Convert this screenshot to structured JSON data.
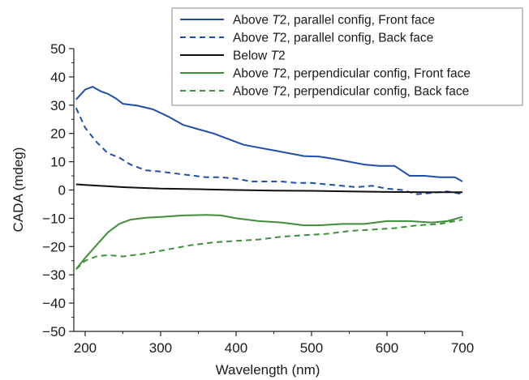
{
  "chart_data": {
    "type": "line",
    "title": "",
    "xlabel": "Wavelength (nm)",
    "ylabel": "CADA (mdeg)",
    "xlim": [
      185,
      700
    ],
    "ylim": [
      -50,
      50
    ],
    "xticks": [
      200,
      300,
      400,
      500,
      600,
      700
    ],
    "yticks": [
      -50,
      -40,
      -30,
      -20,
      -10,
      0,
      10,
      20,
      30,
      40,
      50
    ],
    "ytick_labels": [
      "−50",
      "−40",
      "−30",
      "−20",
      "−10",
      "0",
      "10",
      "20",
      "30",
      "40",
      "50"
    ],
    "grid": false,
    "legend_position": "top-right",
    "series": [
      {
        "name": "Above T2, parallel config, Front face",
        "legend": {
          "prefix": "Above ",
          "italic": "T",
          "suffix": "2, parallel config, Front face"
        },
        "color": "#1f4fa8",
        "dash": "solid",
        "x": [
          188,
          200,
          210,
          220,
          230,
          240,
          250,
          270,
          290,
          310,
          330,
          350,
          370,
          390,
          410,
          430,
          450,
          470,
          490,
          510,
          530,
          550,
          570,
          590,
          610,
          630,
          650,
          670,
          690,
          700
        ],
        "y": [
          32,
          35.5,
          36.5,
          35,
          34,
          32.5,
          30.5,
          29.8,
          28.5,
          26,
          23,
          21.5,
          20,
          18,
          16,
          15,
          14,
          13,
          12,
          11.8,
          11,
          10,
          9,
          8.5,
          8.5,
          5,
          5,
          4.5,
          4.5,
          3
        ]
      },
      {
        "name": "Above T2, parallel config, Back face",
        "legend": {
          "prefix": "Above ",
          "italic": "T",
          "suffix": "2, parallel config, Back face"
        },
        "color": "#1f4fa8",
        "dash": "dashed",
        "x": [
          188,
          200,
          215,
          230,
          245,
          260,
          280,
          300,
          330,
          360,
          380,
          400,
          420,
          440,
          460,
          480,
          500,
          520,
          540,
          560,
          580,
          600,
          620,
          640,
          660,
          680,
          700
        ],
        "y": [
          29,
          22,
          17,
          13,
          11.5,
          9,
          7,
          6.5,
          5.5,
          4.5,
          4.5,
          4,
          3,
          3,
          3,
          2.5,
          2.5,
          2,
          1.5,
          1,
          1.5,
          0.5,
          0,
          -1.5,
          -1,
          -0.5,
          -1.5
        ]
      },
      {
        "name": "Below T2",
        "legend": {
          "prefix": "Below ",
          "italic": "T",
          "suffix": "2"
        },
        "color": "#111111",
        "dash": "solid",
        "x": [
          188,
          200,
          250,
          300,
          350,
          400,
          450,
          500,
          550,
          600,
          650,
          700
        ],
        "y": [
          2,
          1.8,
          1,
          0.5,
          0.3,
          0,
          -0.2,
          -0.3,
          -0.5,
          -0.7,
          -0.8,
          -0.8
        ]
      },
      {
        "name": "Above T2, perpendicular config, Front face",
        "legend": {
          "prefix": "Above ",
          "italic": "T",
          "suffix": "2, perpendicular config, Front face"
        },
        "color": "#3f8f3a",
        "dash": "solid",
        "x": [
          188,
          200,
          215,
          230,
          245,
          260,
          280,
          300,
          330,
          360,
          380,
          400,
          430,
          460,
          490,
          510,
          540,
          570,
          600,
          630,
          660,
          680,
          700
        ],
        "y": [
          -28,
          -24,
          -19.5,
          -15,
          -12,
          -10.5,
          -9.8,
          -9.5,
          -9,
          -8.8,
          -9,
          -10,
          -11,
          -11.5,
          -12.5,
          -12.5,
          -12,
          -12,
          -11,
          -11,
          -11.5,
          -11,
          -9.5
        ]
      },
      {
        "name": "Above T2, perpendicular config, Back face",
        "legend": {
          "prefix": "Above ",
          "italic": "T",
          "suffix": "2, perpendicular config, Back face"
        },
        "color": "#3f8f3a",
        "dash": "dashed",
        "x": [
          188,
          200,
          215,
          230,
          250,
          280,
          310,
          340,
          370,
          400,
          430,
          460,
          490,
          520,
          550,
          580,
          610,
          640,
          670,
          700
        ],
        "y": [
          -28,
          -25,
          -23.5,
          -23,
          -23.5,
          -22.5,
          -21,
          -19.5,
          -18.5,
          -18,
          -17.5,
          -16.5,
          -16,
          -15.5,
          -14.5,
          -14,
          -13.5,
          -12.5,
          -12,
          -10.5
        ]
      }
    ]
  }
}
